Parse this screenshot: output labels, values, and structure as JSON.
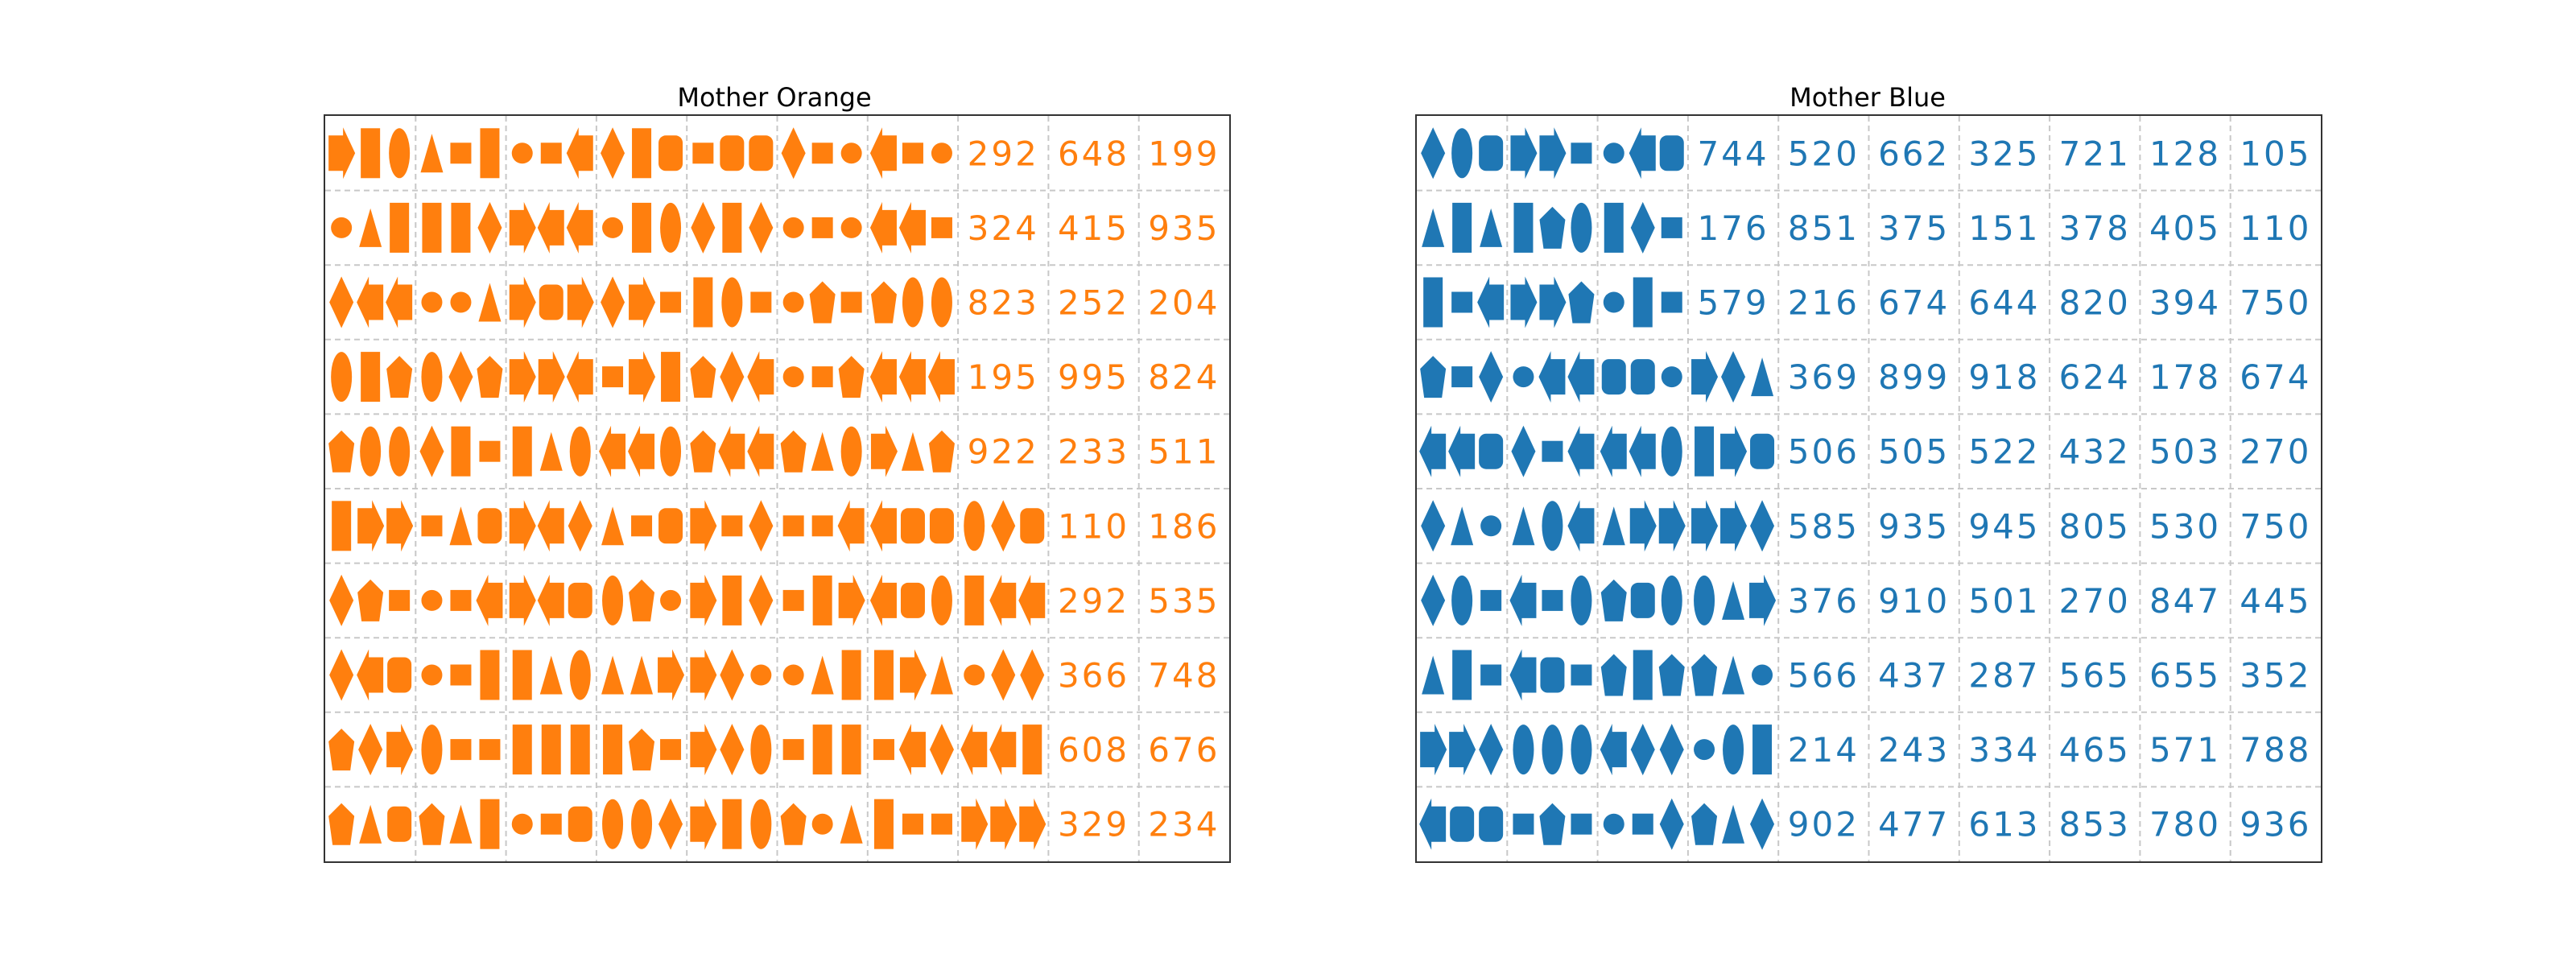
{
  "colors": {
    "orange": "#ff7f0e",
    "blue": "#1f77b4",
    "grid": "#c8c8c8",
    "frame": "#333333"
  },
  "panels": [
    {
      "title": "Mother Orange",
      "color": "#ff7f0e",
      "rows": [
        [
          [
            "arrow",
            "rect",
            "ellipse"
          ],
          [
            "triangle",
            "square",
            "rect"
          ],
          [
            "circle",
            "square",
            "arrowL"
          ],
          [
            "diamond",
            "rect",
            "roundrect"
          ],
          [
            "square",
            "roundrect",
            "roundrect"
          ],
          [
            "diamond",
            "square",
            "circle"
          ],
          [
            "arrowL",
            "square",
            "circle"
          ],
          "292",
          "648",
          "199"
        ],
        [
          [
            "circle",
            "triangle",
            "rect"
          ],
          [
            "rect",
            "rect",
            "diamond"
          ],
          [
            "arrow",
            "arrowL",
            "arrowL"
          ],
          [
            "circle",
            "rect",
            "ellipse"
          ],
          [
            "diamond",
            "rect",
            "diamond"
          ],
          [
            "circle",
            "square",
            "circle"
          ],
          [
            "arrowL",
            "arrowL",
            "square"
          ],
          "324",
          "415",
          "935"
        ],
        [
          [
            "diamond",
            "arrowL",
            "arrowL"
          ],
          [
            "circle",
            "circle",
            "triangle"
          ],
          [
            "arrow",
            "roundrect",
            "arrow"
          ],
          [
            "diamond",
            "arrow",
            "square"
          ],
          [
            "rect",
            "ellipse",
            "square"
          ],
          [
            "circle",
            "pentagon",
            "square"
          ],
          [
            "pentagon",
            "ellipse",
            "ellipse"
          ],
          "823",
          "252",
          "204"
        ],
        [
          [
            "ellipse",
            "rect",
            "pentagon"
          ],
          [
            "ellipse",
            "diamond",
            "pentagon"
          ],
          [
            "arrow",
            "arrow",
            "arrowL"
          ],
          [
            "square",
            "arrow",
            "rect"
          ],
          [
            "pentagon",
            "diamond",
            "arrowL"
          ],
          [
            "circle",
            "square",
            "pentagon"
          ],
          [
            "arrowL",
            "arrowL",
            "arrowL"
          ],
          "195",
          "995",
          "824"
        ],
        [
          [
            "pentagon",
            "ellipse",
            "ellipse"
          ],
          [
            "diamond",
            "rect",
            "square"
          ],
          [
            "rect",
            "triangle",
            "ellipse"
          ],
          [
            "arrowL",
            "arrowL",
            "ellipse"
          ],
          [
            "pentagon",
            "arrowL",
            "arrowL"
          ],
          [
            "pentagon",
            "triangle",
            "ellipse"
          ],
          [
            "arrow",
            "triangle",
            "pentagon"
          ],
          "922",
          "233",
          "511"
        ],
        [
          [
            "rect",
            "arrow",
            "arrow"
          ],
          [
            "square",
            "triangle",
            "roundrect"
          ],
          [
            "arrow",
            "arrowL",
            "diamond"
          ],
          [
            "triangle",
            "square",
            "roundrect"
          ],
          [
            "arrow",
            "square",
            "diamond"
          ],
          [
            "square",
            "square",
            "arrowL"
          ],
          [
            "arrowL",
            "roundrect",
            "roundrect"
          ],
          [
            "ellipse",
            "diamond",
            "roundrect"
          ],
          "110",
          "186"
        ],
        [
          [
            "diamond",
            "pentagon",
            "square"
          ],
          [
            "circle",
            "square",
            "arrowL"
          ],
          [
            "arrow",
            "arrowL",
            "roundrect"
          ],
          [
            "ellipse",
            "pentagon",
            "circle"
          ],
          [
            "arrow",
            "rect",
            "diamond"
          ],
          [
            "square",
            "rect",
            "arrow"
          ],
          [
            "arrowL",
            "roundrect",
            "ellipse"
          ],
          [
            "rect",
            "arrowL",
            "arrowL"
          ],
          "292",
          "535"
        ],
        [
          [
            "diamond",
            "arrowL",
            "roundrect"
          ],
          [
            "circle",
            "square",
            "rect"
          ],
          [
            "rect",
            "triangle",
            "ellipse"
          ],
          [
            "triangle",
            "triangle",
            "arrow"
          ],
          [
            "arrow",
            "diamond",
            "circle"
          ],
          [
            "circle",
            "triangle",
            "rect"
          ],
          [
            "rect",
            "arrow",
            "triangle"
          ],
          [
            "circle",
            "diamond",
            "diamond"
          ],
          "366",
          "748"
        ],
        [
          [
            "pentagon",
            "diamond",
            "arrow"
          ],
          [
            "ellipse",
            "square",
            "square"
          ],
          [
            "rect",
            "rect",
            "rect"
          ],
          [
            "rect",
            "pentagon",
            "square"
          ],
          [
            "arrow",
            "diamond",
            "ellipse"
          ],
          [
            "square",
            "rect",
            "rect"
          ],
          [
            "square",
            "arrowL",
            "diamond"
          ],
          [
            "arrowL",
            "arrowL",
            "rect"
          ],
          "608",
          "676"
        ],
        [
          [
            "pentagon",
            "triangle",
            "roundrect"
          ],
          [
            "pentagon",
            "triangle",
            "rect"
          ],
          [
            "circle",
            "square",
            "roundrect"
          ],
          [
            "ellipse",
            "ellipse",
            "diamond"
          ],
          [
            "arrow",
            "rect",
            "ellipse"
          ],
          [
            "pentagon",
            "circle",
            "triangle"
          ],
          [
            "rect",
            "square",
            "square"
          ],
          [
            "arrow",
            "arrow",
            "arrow"
          ],
          "329",
          "234"
        ]
      ]
    },
    {
      "title": "Mother Blue",
      "color": "#1f77b4",
      "rows": [
        [
          [
            "diamond",
            "ellipse",
            "roundrect"
          ],
          [
            "arrow",
            "arrow",
            "square"
          ],
          [
            "circle",
            "arrowL",
            "roundrect"
          ],
          "744",
          "520",
          "662",
          "325",
          "721",
          "128",
          "105"
        ],
        [
          [
            "triangle",
            "rect",
            "triangle"
          ],
          [
            "rect",
            "pentagon",
            "ellipse"
          ],
          [
            "rect",
            "diamond",
            "square"
          ],
          "176",
          "851",
          "375",
          "151",
          "378",
          "405",
          "110"
        ],
        [
          [
            "rect",
            "square",
            "arrowL"
          ],
          [
            "arrow",
            "arrow",
            "pentagon"
          ],
          [
            "circle",
            "rect",
            "square"
          ],
          "579",
          "216",
          "674",
          "644",
          "820",
          "394",
          "750"
        ],
        [
          [
            "pentagon",
            "square",
            "diamond"
          ],
          [
            "circle",
            "arrowL",
            "arrowL"
          ],
          [
            "roundrect",
            "roundrect",
            "circle"
          ],
          [
            "arrow",
            "diamond",
            "triangle"
          ],
          "369",
          "899",
          "918",
          "624",
          "178",
          "674"
        ],
        [
          [
            "arrowL",
            "arrowL",
            "roundrect"
          ],
          [
            "diamond",
            "square",
            "arrowL"
          ],
          [
            "arrowL",
            "arrowL",
            "ellipse"
          ],
          [
            "rect",
            "arrow",
            "roundrect"
          ],
          "506",
          "505",
          "522",
          "432",
          "503",
          "270"
        ],
        [
          [
            "diamond",
            "triangle",
            "circle"
          ],
          [
            "triangle",
            "ellipse",
            "arrowL"
          ],
          [
            "triangle",
            "arrow",
            "arrow"
          ],
          [
            "arrow",
            "arrow",
            "diamond"
          ],
          "585",
          "935",
          "945",
          "805",
          "530",
          "750"
        ],
        [
          [
            "diamond",
            "ellipse",
            "square"
          ],
          [
            "arrowL",
            "square",
            "ellipse"
          ],
          [
            "pentagon",
            "roundrect",
            "ellipse"
          ],
          [
            "ellipse",
            "triangle",
            "arrow"
          ],
          "376",
          "910",
          "501",
          "270",
          "847",
          "445"
        ],
        [
          [
            "triangle",
            "rect",
            "square"
          ],
          [
            "arrowL",
            "roundrect",
            "square"
          ],
          [
            "pentagon",
            "rect",
            "pentagon"
          ],
          [
            "pentagon",
            "triangle",
            "circle"
          ],
          "566",
          "437",
          "287",
          "565",
          "655",
          "352"
        ],
        [
          [
            "arrow",
            "arrow",
            "diamond"
          ],
          [
            "ellipse",
            "ellipse",
            "ellipse"
          ],
          [
            "arrowL",
            "diamond",
            "diamond"
          ],
          [
            "circle",
            "ellipse",
            "rect"
          ],
          "214",
          "243",
          "334",
          "465",
          "571",
          "788"
        ],
        [
          [
            "arrowL",
            "roundrect",
            "roundrect"
          ],
          [
            "square",
            "pentagon",
            "square"
          ],
          [
            "circle",
            "square",
            "diamond"
          ],
          [
            "pentagon",
            "triangle",
            "diamond"
          ],
          "902",
          "477",
          "613",
          "853",
          "780",
          "936"
        ]
      ]
    }
  ]
}
